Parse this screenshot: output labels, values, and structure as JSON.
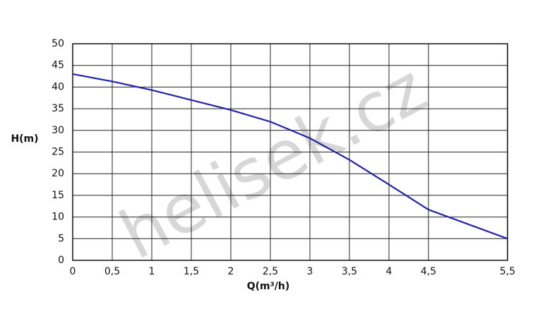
{
  "chart_data": {
    "type": "line",
    "y_label": "H(m)",
    "x_label": "Q(m³/h)",
    "watermark": "helisek.cz",
    "x": [
      0,
      0.5,
      1,
      1.5,
      2,
      2.5,
      3,
      3.5,
      4,
      4.5,
      5.5
    ],
    "series": [
      {
        "color": "#2323a8",
        "values": [
          43,
          41.3,
          39.3,
          37,
          34.7,
          32,
          28.2,
          23.2,
          17.5,
          11.7,
          5
        ]
      }
    ],
    "xlim": [
      0,
      5.5
    ],
    "xticks": [
      0,
      {
        "value": 0.5,
        "label": "0,5"
      },
      1,
      {
        "value": 1.5,
        "label": "1,5"
      },
      2,
      {
        "value": 2.5,
        "label": "2,5"
      },
      3,
      {
        "value": 3.5,
        "label": "3,5"
      },
      4,
      {
        "value": 4.5,
        "label": "4,5"
      },
      {
        "value": 5.5,
        "label": "5,5"
      }
    ],
    "ylim": [
      0,
      50
    ],
    "yticks": [
      0,
      5,
      10,
      15,
      20,
      25,
      30,
      35,
      40,
      45,
      50
    ],
    "grid": true
  }
}
